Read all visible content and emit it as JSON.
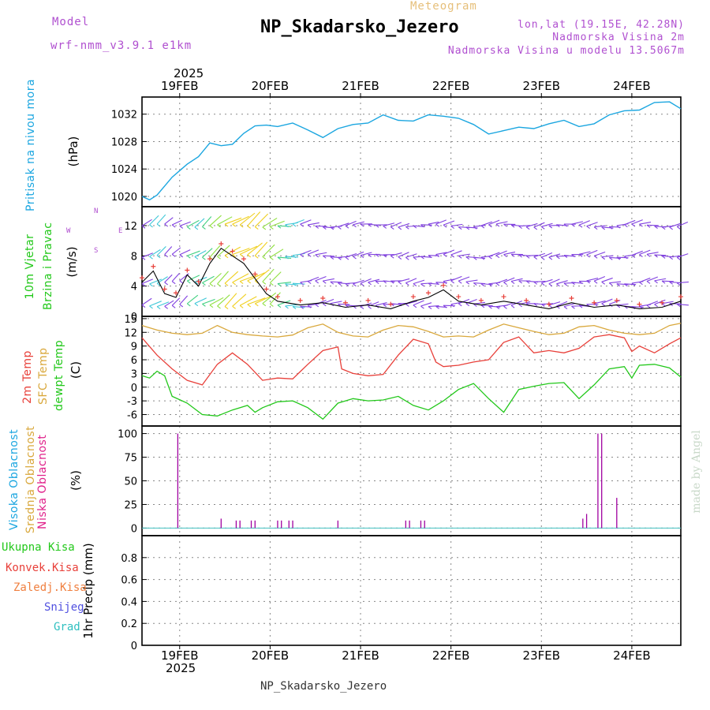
{
  "header": {
    "model_label": "Model",
    "model_name": "wrf-nmm_v3.9.1 e1km",
    "meteogram": "Meteogram",
    "station": "NP_Skadarsko_Jezero",
    "lonlat": "lon,lat (19.15E, 42.28N)",
    "altitude": "Nadmorska Visina 2m",
    "model_altitude": "Nadmorska Visina u modelu 13.5067m",
    "footer_station": "NP_Skadarsko_Jezero",
    "watermark": "made by Angel"
  },
  "time_axis": {
    "year": "2025",
    "days": [
      "19FEB",
      "20FEB",
      "21FEB",
      "22FEB",
      "23FEB",
      "24FEB"
    ]
  },
  "colors": {
    "pressure": "#1ba6e0",
    "temp": "#e8403a",
    "sfc_temp": "#d9a83c",
    "dewpt": "#22c81a",
    "cloud": "#a000a0",
    "labels_purple": "#b050d0"
  },
  "panel_labels": {
    "pressure": {
      "name": "Pritisak na nivou mora",
      "unit": "(hPa)"
    },
    "wind": {
      "line1": "10m Vjetar",
      "line2": "Brzina i Pravac",
      "unit": "(m/s)",
      "compass_n": "N",
      "compass_w": "W",
      "compass_e": "E",
      "compass_s": "S"
    },
    "temp": {
      "t2m": "2m Temp",
      "sfc": "SFC Temp",
      "dew": "dewpt Temp",
      "unit": "(C)"
    },
    "cloud": {
      "high": "Visoka Oblacnost",
      "mid": "Srednja Oblacnost",
      "low": "Niska Oblacnost",
      "unit": "(%)"
    },
    "precip": {
      "total": "Ukupna Kisa",
      "conv": "Konvek.Kisa",
      "frz": "Zaledj.Kisa",
      "snow": "Snijeg",
      "grad": "Grad",
      "axis": "1hr Precip (mm)"
    }
  },
  "chart_data": [
    {
      "type": "line",
      "name": "pressure",
      "xlim": [
        0,
        143
      ],
      "ylim": [
        1018.5,
        1034.5
      ],
      "yticks": [
        1020,
        1024,
        1028,
        1032
      ],
      "x": [
        0,
        2,
        4,
        8,
        12,
        15,
        18,
        21,
        24,
        27,
        30,
        33,
        36,
        40,
        44,
        48,
        52,
        56,
        60,
        64,
        68,
        72,
        76,
        80,
        84,
        88,
        92,
        96,
        100,
        104,
        108,
        112,
        116,
        120,
        124,
        128,
        132,
        136,
        140,
        143
      ],
      "y": [
        1020.0,
        1019.5,
        1020.2,
        1022.8,
        1024.7,
        1025.8,
        1027.8,
        1027.4,
        1027.6,
        1029.2,
        1030.3,
        1030.4,
        1030.2,
        1030.7,
        1029.7,
        1028.6,
        1029.9,
        1030.5,
        1030.7,
        1031.9,
        1031.1,
        1031.0,
        1031.9,
        1031.7,
        1031.4,
        1030.5,
        1029.1,
        1029.6,
        1030.1,
        1029.9,
        1030.6,
        1031.1,
        1030.2,
        1030.6,
        1031.9,
        1032.5,
        1032.6,
        1033.7,
        1033.8,
        1032.8
      ]
    },
    {
      "type": "line",
      "name": "wind",
      "xlim": [
        0,
        143
      ],
      "ylim": [
        0,
        14.5
      ],
      "yticks": [
        0,
        4,
        8,
        12
      ],
      "x": [
        0,
        3,
        6,
        9,
        12,
        15,
        18,
        21,
        24,
        27,
        30,
        33,
        36,
        42,
        48,
        54,
        60,
        66,
        72,
        76,
        80,
        84,
        90,
        96,
        102,
        108,
        114,
        120,
        126,
        132,
        138,
        143
      ],
      "y": [
        4.5,
        6.0,
        3.0,
        2.5,
        5.5,
        4.0,
        7.0,
        9.0,
        8.0,
        7.0,
        5.0,
        3.0,
        2.0,
        1.5,
        1.8,
        1.2,
        1.5,
        1.0,
        2.0,
        2.5,
        3.5,
        2.0,
        1.5,
        2.0,
        1.5,
        1.0,
        1.8,
        1.2,
        1.5,
        1.0,
        1.2,
        2.0
      ],
      "barb_speed": [
        4,
        6,
        3,
        3,
        6,
        5,
        8,
        10,
        11,
        12,
        11,
        9,
        6,
        4,
        4,
        4,
        4,
        4,
        4,
        3,
        4,
        4,
        4,
        4,
        4,
        4,
        4,
        4,
        4,
        4,
        4,
        4
      ]
    },
    {
      "type": "line",
      "name": "temperature",
      "xlim": [
        0,
        143
      ],
      "ylim": [
        -8.5,
        15.5
      ],
      "yticks": [
        -6,
        -3,
        0,
        3,
        6,
        9,
        12,
        15
      ],
      "series": [
        {
          "name": "SFC Temp",
          "color": "#d9a83c",
          "x": [
            0,
            4,
            8,
            12,
            16,
            20,
            24,
            28,
            32,
            36,
            40,
            44,
            48,
            52,
            56,
            60,
            64,
            68,
            72,
            76,
            80,
            84,
            88,
            92,
            96,
            100,
            104,
            108,
            112,
            116,
            120,
            124,
            128,
            132,
            136,
            140,
            143
          ],
          "y": [
            13.5,
            12.5,
            11.8,
            11.5,
            11.8,
            13.5,
            12.0,
            11.5,
            11.2,
            11.0,
            11.4,
            13.0,
            13.8,
            12.0,
            11.2,
            11.0,
            12.5,
            13.5,
            13.2,
            12.2,
            11.0,
            11.2,
            11.0,
            12.5,
            13.8,
            13.0,
            12.2,
            11.5,
            11.8,
            13.2,
            13.5,
            12.5,
            11.8,
            11.5,
            11.8,
            13.5,
            14.0
          ]
        },
        {
          "name": "2m Temp",
          "color": "#e8403a",
          "x": [
            0,
            4,
            8,
            12,
            16,
            20,
            24,
            28,
            32,
            36,
            40,
            44,
            48,
            52,
            53,
            56,
            60,
            64,
            68,
            72,
            76,
            78,
            80,
            84,
            88,
            92,
            96,
            100,
            104,
            108,
            112,
            116,
            120,
            124,
            128,
            130,
            132,
            136,
            140,
            143
          ],
          "y": [
            10.8,
            7.0,
            4.0,
            1.5,
            0.5,
            5.0,
            7.5,
            5.0,
            1.5,
            2.0,
            1.8,
            5.0,
            8.0,
            8.8,
            4.0,
            3.0,
            2.5,
            2.8,
            7.0,
            10.5,
            9.5,
            5.5,
            4.5,
            4.8,
            5.5,
            6.0,
            9.8,
            11.0,
            7.5,
            8.0,
            7.5,
            8.5,
            11.0,
            11.5,
            10.8,
            7.8,
            9.0,
            7.5,
            9.5,
            10.8
          ]
        },
        {
          "name": "dewpt Temp",
          "color": "#22c81a",
          "x": [
            0,
            2,
            4,
            6,
            8,
            12,
            16,
            20,
            24,
            28,
            30,
            32,
            36,
            40,
            44,
            48,
            52,
            56,
            60,
            64,
            68,
            72,
            76,
            80,
            84,
            88,
            92,
            96,
            100,
            104,
            108,
            112,
            116,
            120,
            124,
            128,
            130,
            132,
            136,
            140,
            143
          ],
          "y": [
            2.5,
            2.0,
            3.5,
            2.5,
            -2.0,
            -3.5,
            -6.0,
            -6.3,
            -5.0,
            -4.0,
            -5.5,
            -4.5,
            -3.2,
            -3.0,
            -4.5,
            -7.0,
            -3.5,
            -2.5,
            -3.0,
            -2.8,
            -2.0,
            -4.0,
            -5.0,
            -3.0,
            -0.5,
            0.8,
            -2.5,
            -5.5,
            -0.5,
            0.2,
            0.8,
            1.0,
            -2.5,
            0.5,
            4.0,
            4.5,
            2.0,
            4.8,
            5.0,
            4.2,
            2.2
          ]
        }
      ]
    },
    {
      "type": "bar",
      "name": "cloud",
      "xlim": [
        0,
        143
      ],
      "ylim": [
        -8,
        108
      ],
      "yticks": [
        0,
        25,
        50,
        75,
        100
      ],
      "x": [
        9.5,
        21,
        25,
        26,
        29,
        30,
        36,
        37,
        39,
        40,
        52,
        70,
        71,
        74,
        75,
        117,
        118,
        121,
        122,
        126
      ],
      "values": [
        100,
        10,
        8,
        8,
        8,
        8,
        8,
        8,
        8,
        8,
        8,
        8,
        8,
        8,
        8,
        10,
        15,
        100,
        100,
        32
      ]
    },
    {
      "type": "bar",
      "name": "precipitation",
      "xlim": [
        0,
        143
      ],
      "ylim": [
        0,
        1.0
      ],
      "yticks": [
        0,
        0.2,
        0.4,
        0.6,
        0.8
      ],
      "x": [],
      "values": []
    }
  ]
}
